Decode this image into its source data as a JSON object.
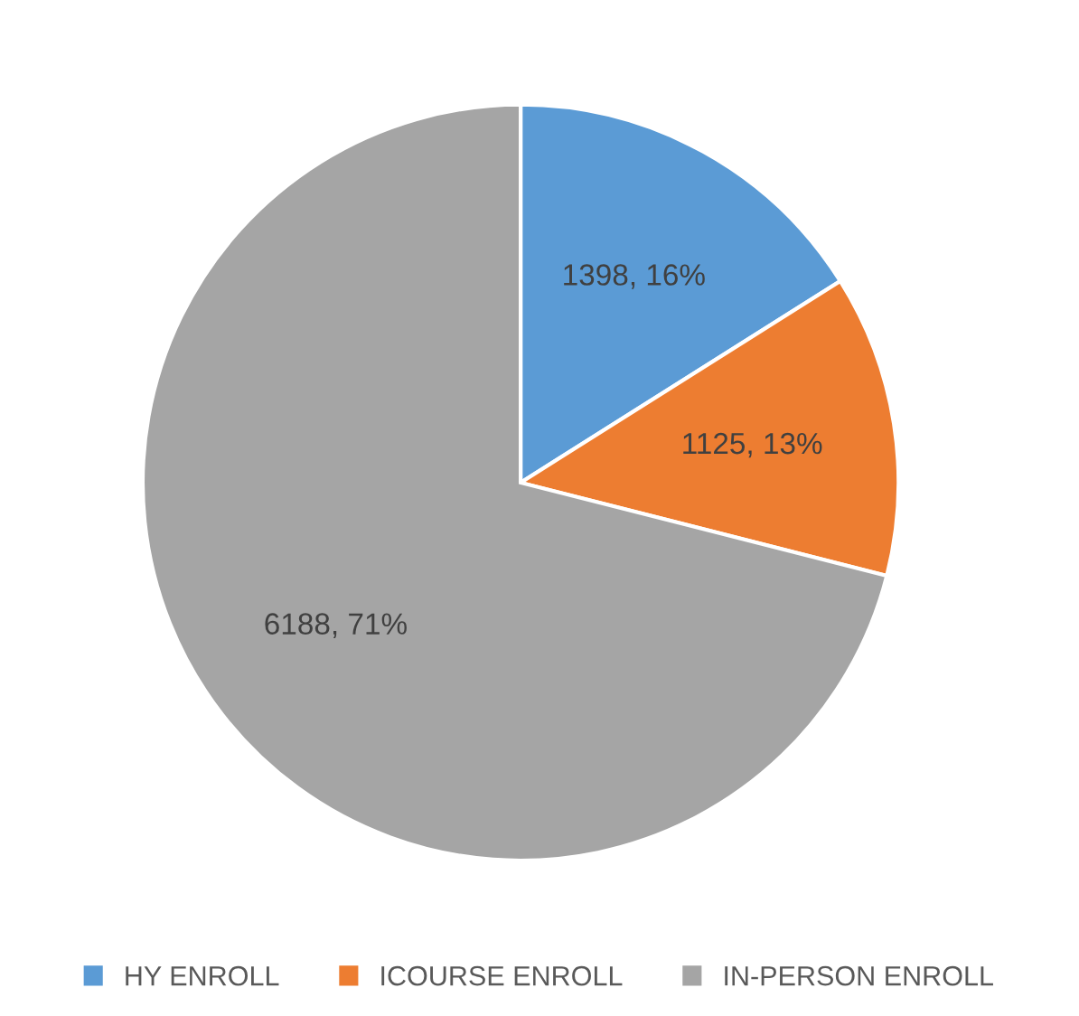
{
  "chart_data": {
    "type": "pie",
    "categories": [
      "HY ENROLL",
      "ICOURSE ENROLL",
      "IN-PERSON ENROLL"
    ],
    "values": [
      1398,
      1125,
      6188
    ],
    "colors": [
      "#5b9bd5",
      "#ed7d31",
      "#a5a5a5"
    ],
    "value_labels": [
      "1398, 16%",
      "1125, 13%",
      "6188, 71%"
    ],
    "legend": "bottom"
  }
}
